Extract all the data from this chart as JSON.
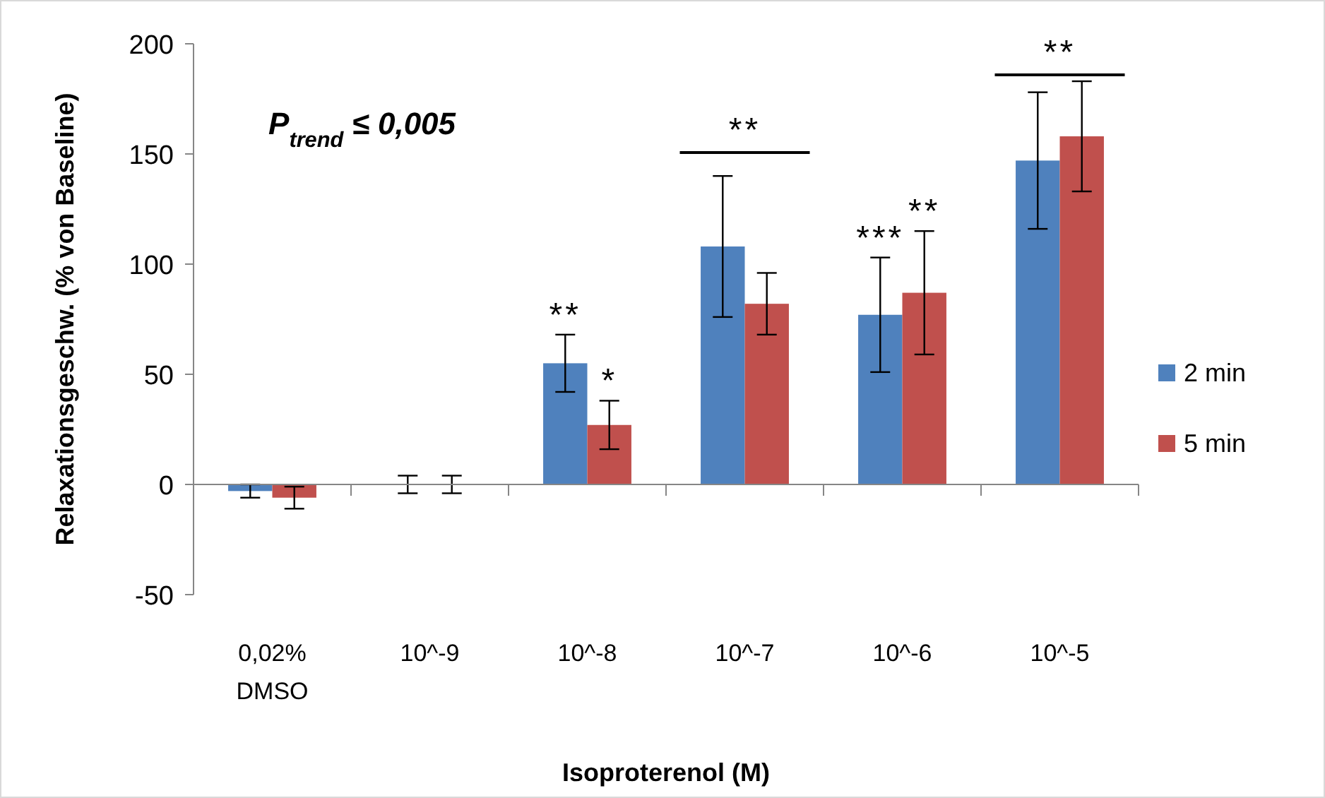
{
  "chart_data": {
    "type": "bar",
    "xlabel": "Isoproterenol (M)",
    "ylabel": "Relaxationsgeschw. (% von Baseline)",
    "categories": [
      "0,02%\nDMSO",
      "10^-9",
      "10^-8",
      "10^-7",
      "10^-6",
      "10^-5"
    ],
    "series": [
      {
        "name": "2 min",
        "color": "#4f81bd",
        "values": [
          -3,
          0,
          55,
          108,
          77,
          147
        ],
        "errors": [
          3,
          4,
          13,
          32,
          26,
          31
        ],
        "value_labels": [
          null,
          null,
          "**",
          null,
          "***",
          null
        ]
      },
      {
        "name": "5 min",
        "color": "#c0504d",
        "values": [
          -6,
          0,
          27,
          82,
          87,
          158
        ],
        "errors": [
          5,
          4,
          11,
          14,
          28,
          25
        ],
        "value_labels": [
          null,
          null,
          "*",
          null,
          "**",
          null
        ]
      }
    ],
    "ylim": [
      -50,
      200
    ],
    "yticks": [
      -50,
      0,
      50,
      100,
      150,
      200
    ],
    "legend": "right",
    "annotations": [
      "P$_{trend}$ ≤ 0,005",
      "**",
      "**"
    ]
  }
}
